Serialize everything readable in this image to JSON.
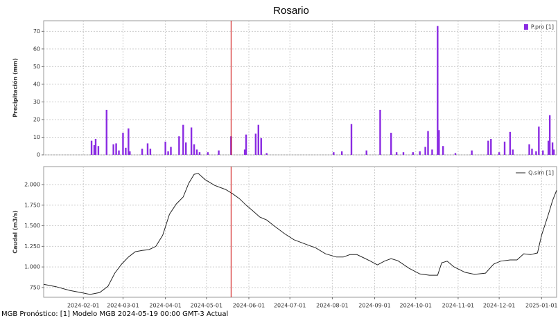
{
  "footer": "MGB Pronóstico: [1] Modelo MGB 2024-05-19 00:00 GMT-3 Actual",
  "chart_data": [
    {
      "type": "bar",
      "title": "Rosario",
      "y_label": "Precipitación (mm)",
      "legend": "upper right",
      "grid": true,
      "vline": {
        "x": "2024-05-19",
        "color": "#cc0000"
      },
      "xlim": [
        "2024-01-03",
        "2025-01-12"
      ],
      "xticks": [
        "2024-02-01",
        "2024-03-01",
        "2024-04-01",
        "2024-05-01",
        "2024-06-01",
        "2024-07-01",
        "2024-08-01",
        "2024-09-01",
        "2024-10-01",
        "2024-11-01",
        "2024-12-01",
        "2025-01-01"
      ],
      "ylim": [
        0,
        76
      ],
      "yticks": [
        0,
        10,
        20,
        30,
        40,
        50,
        60,
        70
      ],
      "x": [
        "2024-02-07",
        "2024-02-09",
        "2024-02-10",
        "2024-02-12",
        "2024-02-18",
        "2024-02-23",
        "2024-02-25",
        "2024-02-27",
        "2024-03-01",
        "2024-03-03",
        "2024-03-05",
        "2024-03-06",
        "2024-03-15",
        "2024-03-19",
        "2024-03-21",
        "2024-04-01",
        "2024-04-03",
        "2024-04-05",
        "2024-04-11",
        "2024-04-14",
        "2024-04-16",
        "2024-04-20",
        "2024-04-22",
        "2024-04-24",
        "2024-04-26",
        "2024-05-02",
        "2024-05-10",
        "2024-05-19",
        "2024-05-29",
        "2024-05-30",
        "2024-06-06",
        "2024-06-08",
        "2024-06-10",
        "2024-06-14",
        "2024-08-02",
        "2024-08-08",
        "2024-08-15",
        "2024-08-26",
        "2024-09-05",
        "2024-09-13",
        "2024-09-17",
        "2024-09-22",
        "2024-09-29",
        "2024-10-04",
        "2024-10-08",
        "2024-10-10",
        "2024-10-13",
        "2024-10-17",
        "2024-10-18",
        "2024-10-21",
        "2024-10-30",
        "2024-11-11",
        "2024-11-23",
        "2024-11-25",
        "2024-12-01",
        "2024-12-05",
        "2024-12-09",
        "2024-12-11",
        "2024-12-23",
        "2024-12-25",
        "2024-12-28",
        "2024-12-30",
        "2025-01-02",
        "2025-01-06",
        "2025-01-07",
        "2025-01-09",
        "2025-01-10"
      ],
      "series": [
        {
          "name": "P.pro [1]",
          "color": "#8a2be2",
          "values": [
            8,
            5.5,
            9,
            5,
            25.5,
            6,
            6.5,
            2.5,
            12.5,
            4,
            15,
            2,
            3.5,
            6.5,
            3.5,
            7.5,
            2,
            4.5,
            10.5,
            17,
            7,
            15.5,
            6,
            3,
            1.5,
            1.5,
            2.5,
            10.5,
            3,
            11.5,
            12,
            17,
            9.5,
            1,
            1.5,
            2,
            17.5,
            2.5,
            25.5,
            12.5,
            1.5,
            1.5,
            1.5,
            2,
            4.5,
            13.5,
            3,
            73,
            14,
            5,
            1,
            2.5,
            8,
            9,
            1.5,
            7.5,
            13,
            3,
            6,
            3.5,
            2,
            16,
            2.5,
            8,
            22.5,
            7,
            3
          ]
        }
      ]
    },
    {
      "type": "line",
      "y_label": "Caudal (m3/s)",
      "legend": "upper right",
      "grid": true,
      "vline": {
        "x": "2024-05-19",
        "color": "#cc0000"
      },
      "xlim": [
        "2024-01-03",
        "2025-01-12"
      ],
      "xticks": [
        "2024-02-01",
        "2024-03-01",
        "2024-04-01",
        "2024-05-01",
        "2024-06-01",
        "2024-07-01",
        "2024-08-01",
        "2024-09-01",
        "2024-10-01",
        "2024-11-01",
        "2024-12-01",
        "2025-01-01"
      ],
      "ylim": [
        632,
        2218
      ],
      "yticks": [
        750,
        {
          "value": 1000,
          "label": "1.000"
        },
        {
          "value": 1250,
          "label": "1.250"
        },
        {
          "value": 1500,
          "label": "1.500"
        },
        {
          "value": 1750,
          "label": "1.750"
        },
        {
          "value": 2000,
          "label": "2.000"
        }
      ],
      "x": [
        "2024-01-03",
        "2024-01-12",
        "2024-01-22",
        "2024-02-01",
        "2024-02-06",
        "2024-02-13",
        "2024-02-19",
        "2024-02-24",
        "2024-02-29",
        "2024-03-05",
        "2024-03-10",
        "2024-03-15",
        "2024-03-20",
        "2024-03-25",
        "2024-03-30",
        "2024-04-04",
        "2024-04-09",
        "2024-04-14",
        "2024-04-18",
        "2024-04-22",
        "2024-04-25",
        "2024-04-30",
        "2024-05-07",
        "2024-05-15",
        "2024-05-20",
        "2024-05-25",
        "2024-05-30",
        "2024-06-04",
        "2024-06-09",
        "2024-06-14",
        "2024-06-19",
        "2024-06-27",
        "2024-07-04",
        "2024-07-12",
        "2024-07-20",
        "2024-07-27",
        "2024-08-04",
        "2024-08-09",
        "2024-08-14",
        "2024-08-19",
        "2024-08-24",
        "2024-08-29",
        "2024-09-03",
        "2024-09-08",
        "2024-09-13",
        "2024-09-18",
        "2024-09-26",
        "2024-10-04",
        "2024-10-11",
        "2024-10-17",
        "2024-10-20",
        "2024-10-24",
        "2024-10-29",
        "2024-11-06",
        "2024-11-13",
        "2024-11-21",
        "2024-11-27",
        "2024-12-02",
        "2024-12-09",
        "2024-12-14",
        "2024-12-19",
        "2024-12-24",
        "2024-12-29",
        "2025-01-01",
        "2025-01-06",
        "2025-01-09",
        "2025-01-12"
      ],
      "series": [
        {
          "name": "Q.sim [1]",
          "color": "#222222",
          "values": [
            790,
            760,
            715,
            683,
            666,
            690,
            765,
            925,
            1035,
            1120,
            1185,
            1200,
            1210,
            1250,
            1385,
            1640,
            1765,
            1850,
            2015,
            2125,
            2135,
            2060,
            1990,
            1940,
            1890,
            1830,
            1750,
            1680,
            1605,
            1570,
            1505,
            1405,
            1330,
            1280,
            1230,
            1160,
            1120,
            1120,
            1150,
            1150,
            1110,
            1070,
            1025,
            1070,
            1100,
            1075,
            985,
            915,
            900,
            900,
            1050,
            1070,
            1000,
            935,
            910,
            925,
            1035,
            1070,
            1085,
            1085,
            1160,
            1150,
            1170,
            1385,
            1640,
            1805,
            1930
          ]
        }
      ]
    }
  ]
}
